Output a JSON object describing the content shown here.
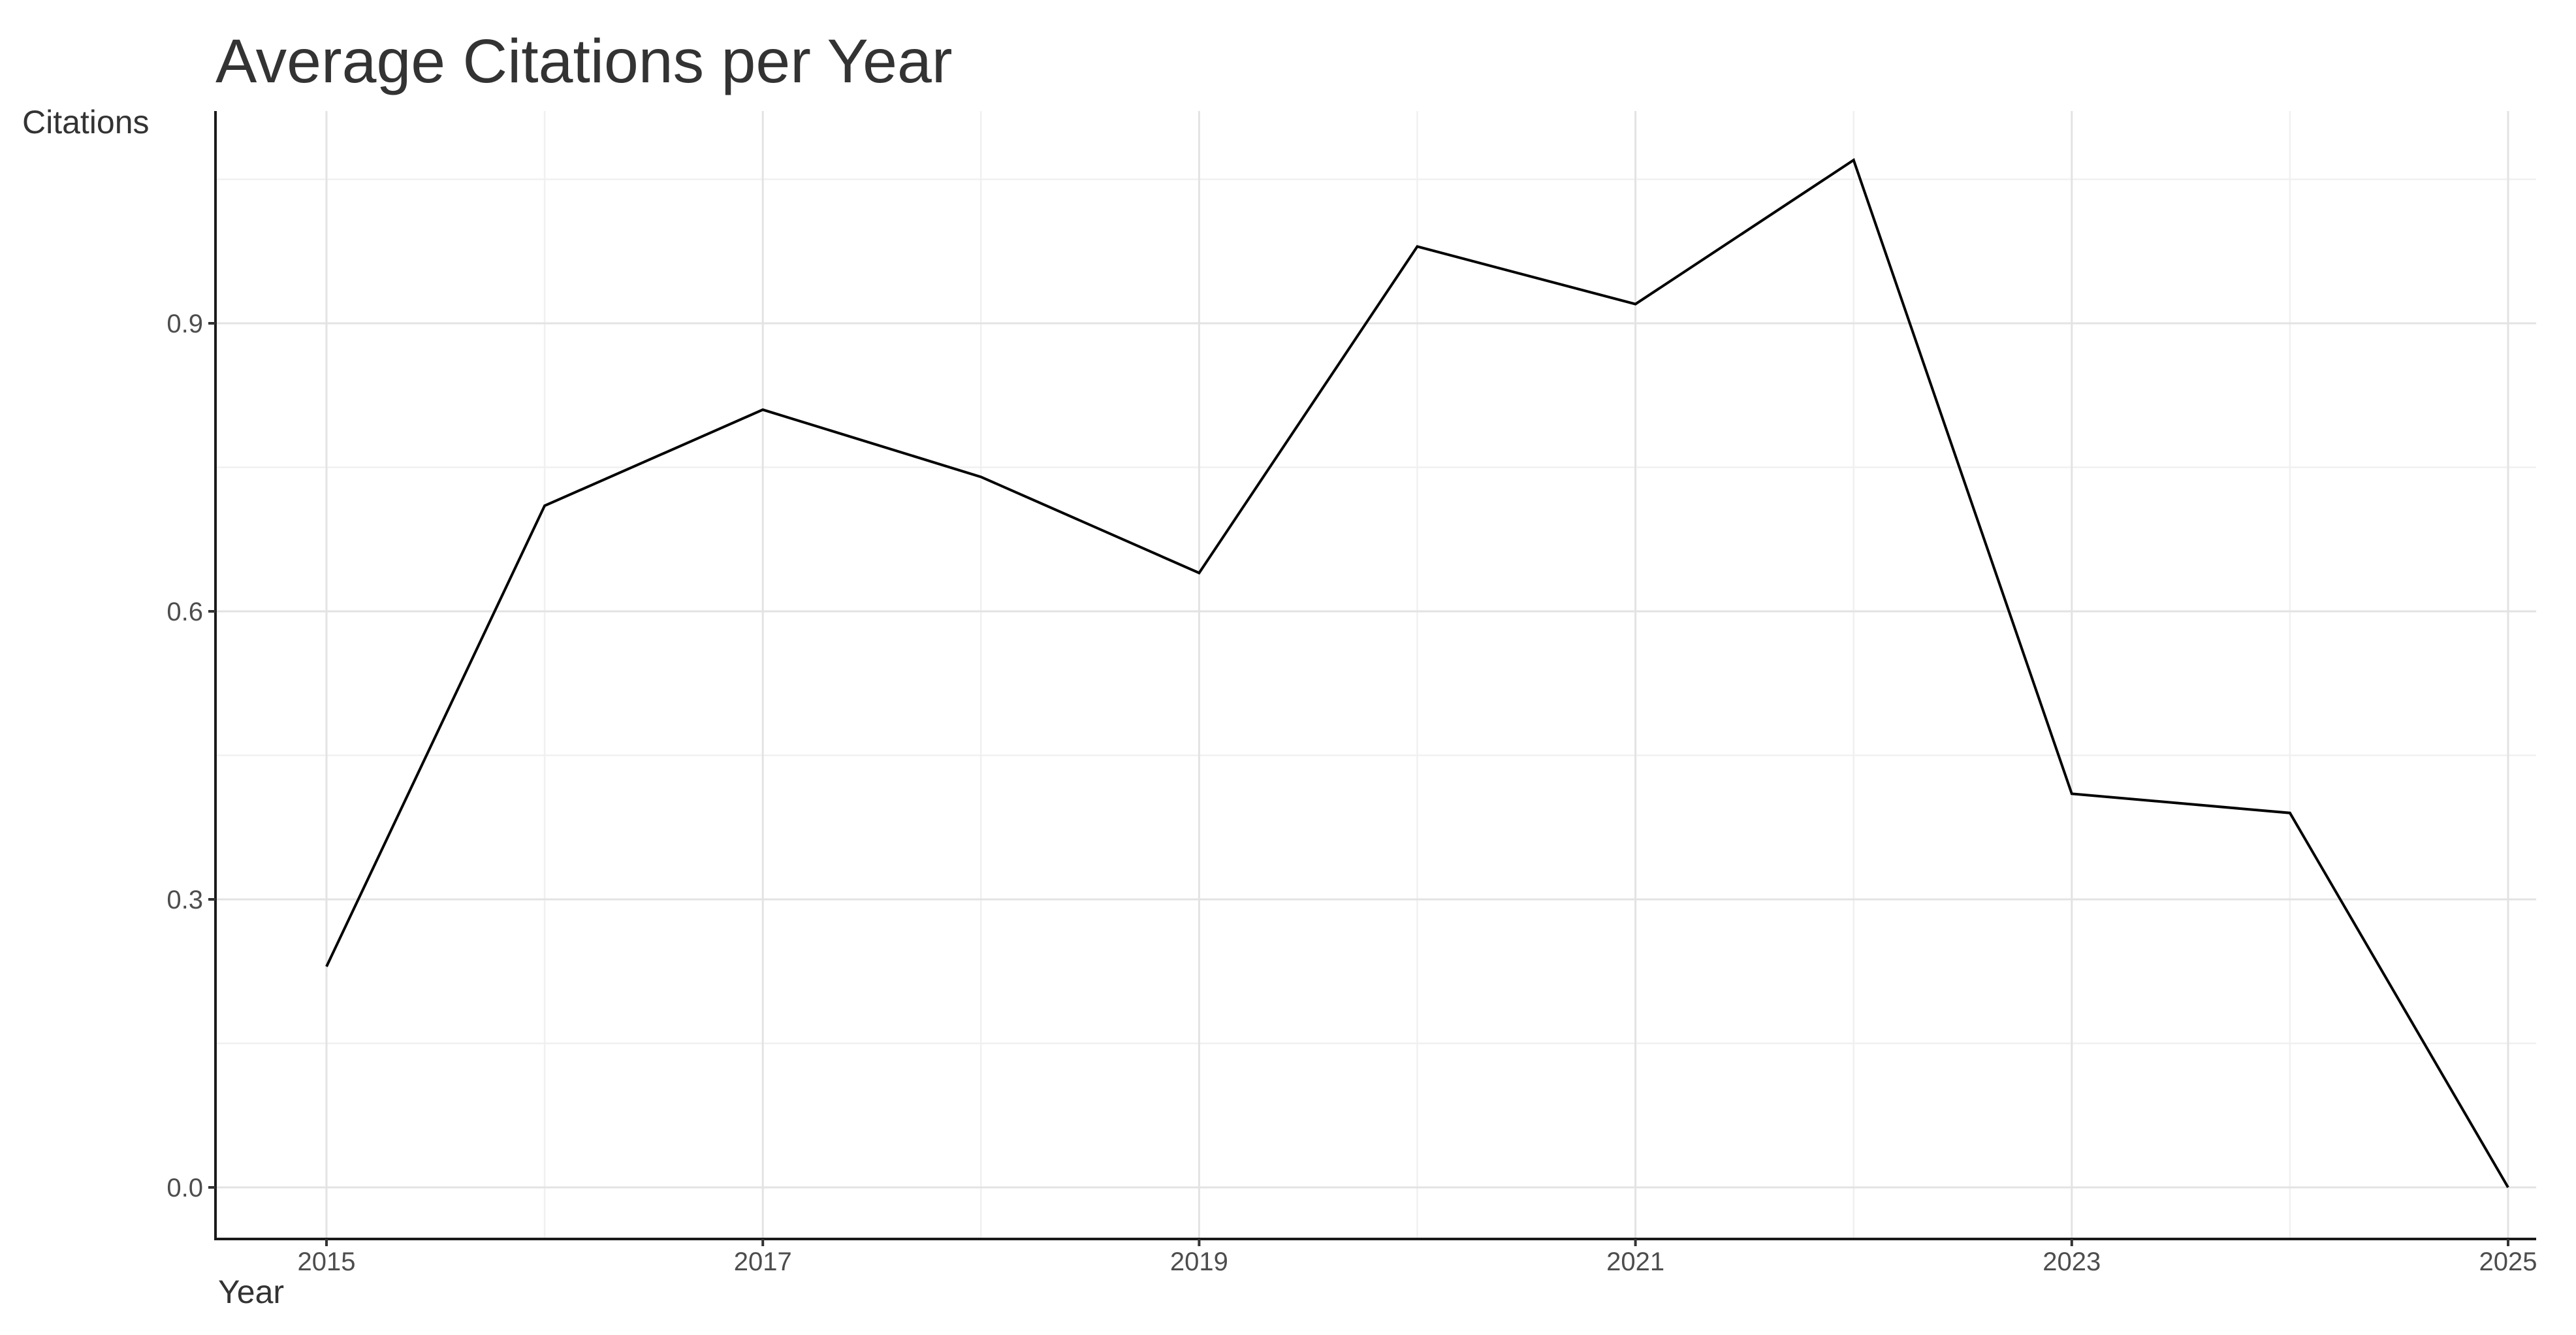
{
  "title": "Average Citations per Year",
  "colors": {
    "background": "#ffffff",
    "line": "#000000",
    "axis": "#1a1a1a",
    "tick": "#333333",
    "grid_major": "#e3e3e3",
    "grid_minor": "#f0f0f0",
    "title_text": "#333333",
    "axis_title_text": "#333333",
    "tick_label_text": "#4d4d4d"
  },
  "chart_data": {
    "type": "line",
    "title": "Average Citations per Year",
    "xlabel": "Year",
    "ylabel": "Citations",
    "x": [
      2015,
      2016,
      2017,
      2018,
      2019,
      2020,
      2021,
      2022,
      2023,
      2024,
      2025
    ],
    "values": [
      0.23,
      0.71,
      0.81,
      0.74,
      0.64,
      0.98,
      0.92,
      1.07,
      0.41,
      0.39,
      0.0
    ],
    "series_name": "Average citations per year",
    "x_major_ticks": [
      2015,
      2017,
      2019,
      2021,
      2023,
      2025
    ],
    "x_minor_gridlines": [
      2016,
      2018,
      2020,
      2022,
      2024
    ],
    "x_tick_labels": [
      "2015",
      "2017",
      "2019",
      "2021",
      "2023",
      "2025"
    ],
    "y_major_ticks": [
      0.0,
      0.3,
      0.6,
      0.9
    ],
    "y_minor_gridlines": [
      0.15,
      0.45,
      0.75,
      1.05
    ],
    "y_tick_labels": [
      "0.0",
      "0.3",
      "0.6",
      "0.9"
    ],
    "xlim": [
      2014.49,
      2025.13
    ],
    "ylim": [
      -0.054,
      1.121
    ],
    "grid": "major and minor, light gray on white",
    "legend": false
  }
}
